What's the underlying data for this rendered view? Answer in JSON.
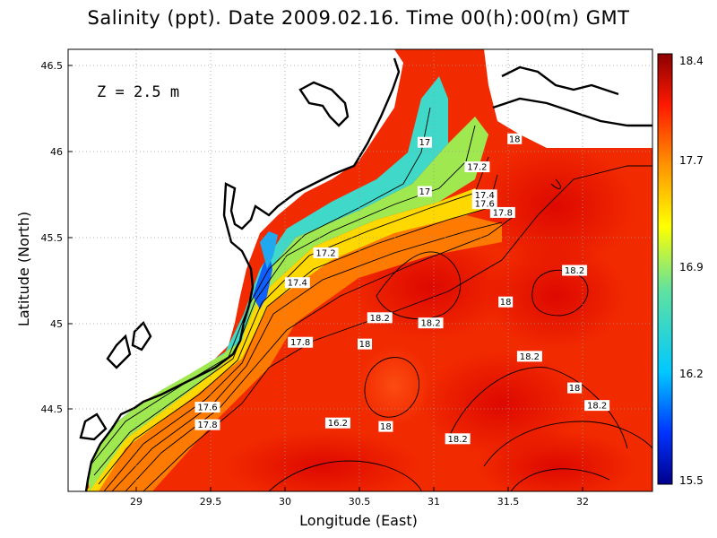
{
  "title": "Salinity (ppt). Date 2009.02.16. Time 00(h):00(m) GMT",
  "depth_label": "Z = 2.5 m",
  "chart_data": {
    "type": "heatmap",
    "xlabel": "Longitude (East)",
    "ylabel": "Latitude (North)",
    "xlim": [
      28.55,
      32.45
    ],
    "ylim": [
      44.03,
      46.55
    ],
    "x_ticks": [
      "29",
      "29.5",
      "30",
      "30.5",
      "31",
      "31.5",
      "32"
    ],
    "y_ticks": [
      "44.5",
      "45",
      "45.5",
      "46",
      "46.5"
    ],
    "colorbar": {
      "ticks": [
        "15.5",
        "16.2",
        "16.9",
        "17.7",
        "18.4"
      ],
      "range": [
        15.5,
        18.4
      ]
    },
    "grid": true,
    "contour_labels": [
      {
        "text": "18",
        "lon": 31.53,
        "lat": 46.04
      },
      {
        "text": "17",
        "lon": 30.93,
        "lat": 46.02
      },
      {
        "text": "17.2",
        "lon": 31.28,
        "lat": 45.88
      },
      {
        "text": "17",
        "lon": 30.93,
        "lat": 45.74
      },
      {
        "text": "17.4",
        "lon": 31.33,
        "lat": 45.72
      },
      {
        "text": "17.6",
        "lon": 31.33,
        "lat": 45.67
      },
      {
        "text": "17.8",
        "lon": 31.45,
        "lat": 45.62
      },
      {
        "text": "17.2",
        "lon": 30.27,
        "lat": 45.39
      },
      {
        "text": "17.4",
        "lon": 30.08,
        "lat": 45.22
      },
      {
        "text": "18.2",
        "lon": 31.93,
        "lat": 45.29
      },
      {
        "text": "18",
        "lon": 31.47,
        "lat": 45.11
      },
      {
        "text": "18.2",
        "lon": 30.63,
        "lat": 45.02
      },
      {
        "text": "18.2",
        "lon": 30.97,
        "lat": 44.99
      },
      {
        "text": "17.8",
        "lon": 30.1,
        "lat": 44.88
      },
      {
        "text": "18",
        "lon": 30.53,
        "lat": 44.87
      },
      {
        "text": "18.2",
        "lon": 31.63,
        "lat": 44.8
      },
      {
        "text": "18",
        "lon": 31.93,
        "lat": 44.62
      },
      {
        "text": "18.2",
        "lon": 32.08,
        "lat": 44.52
      },
      {
        "text": "17.6",
        "lon": 29.48,
        "lat": 44.51
      },
      {
        "text": "17.8",
        "lon": 29.48,
        "lat": 44.41
      },
      {
        "text": "16.2",
        "lon": 30.35,
        "lat": 44.42
      },
      {
        "text": "18",
        "lon": 30.67,
        "lat": 44.4
      },
      {
        "text": "18.2",
        "lon": 31.15,
        "lat": 44.33
      }
    ]
  },
  "colors": {
    "land": "#ffffff",
    "coast": "#000000",
    "grid": "#9a9a9a"
  }
}
